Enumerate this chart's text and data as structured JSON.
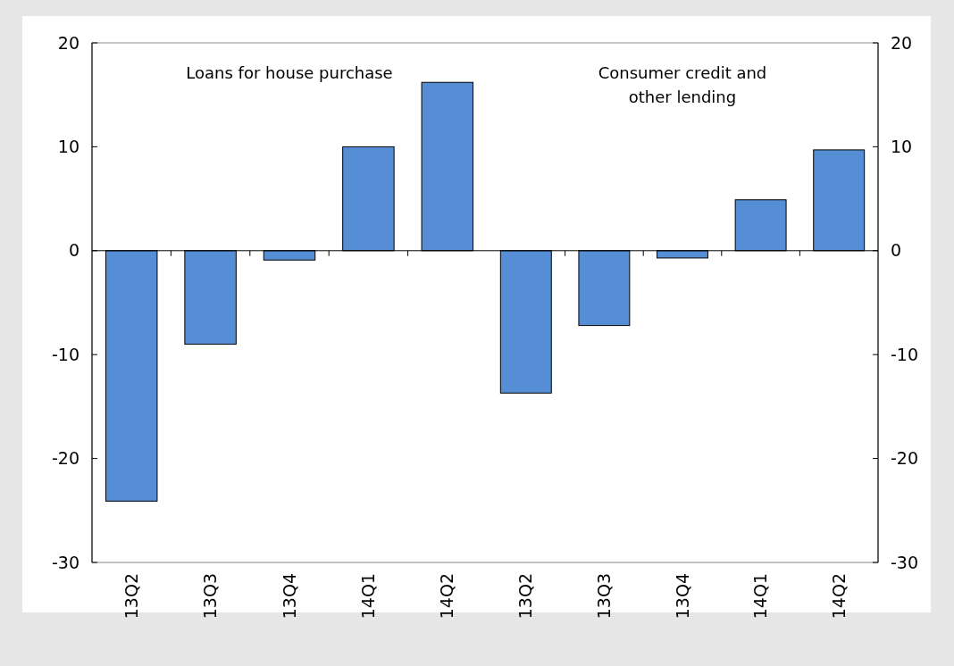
{
  "chart_data": [
    {
      "type": "bar",
      "title": "Loans for house purchase",
      "categories": [
        "13Q2",
        "13Q3",
        "13Q4",
        "14Q1",
        "14Q2"
      ],
      "values": [
        -24.1,
        -9.0,
        -0.9,
        10.0,
        16.2
      ],
      "color": "#558ed5",
      "ylim": [
        -30,
        20
      ],
      "yticks": [
        -30,
        -20,
        -10,
        0,
        10,
        20
      ]
    },
    {
      "type": "bar",
      "title": "Consumer credit and\nother lending",
      "categories": [
        "13Q2",
        "13Q3",
        "13Q4",
        "14Q1",
        "14Q2"
      ],
      "values": [
        -13.7,
        -7.2,
        -0.7,
        4.9,
        9.7
      ],
      "color": "#558ed5",
      "ylim": [
        -30,
        20
      ],
      "yticks": [
        -30,
        -20,
        -10,
        0,
        10,
        20
      ]
    }
  ]
}
